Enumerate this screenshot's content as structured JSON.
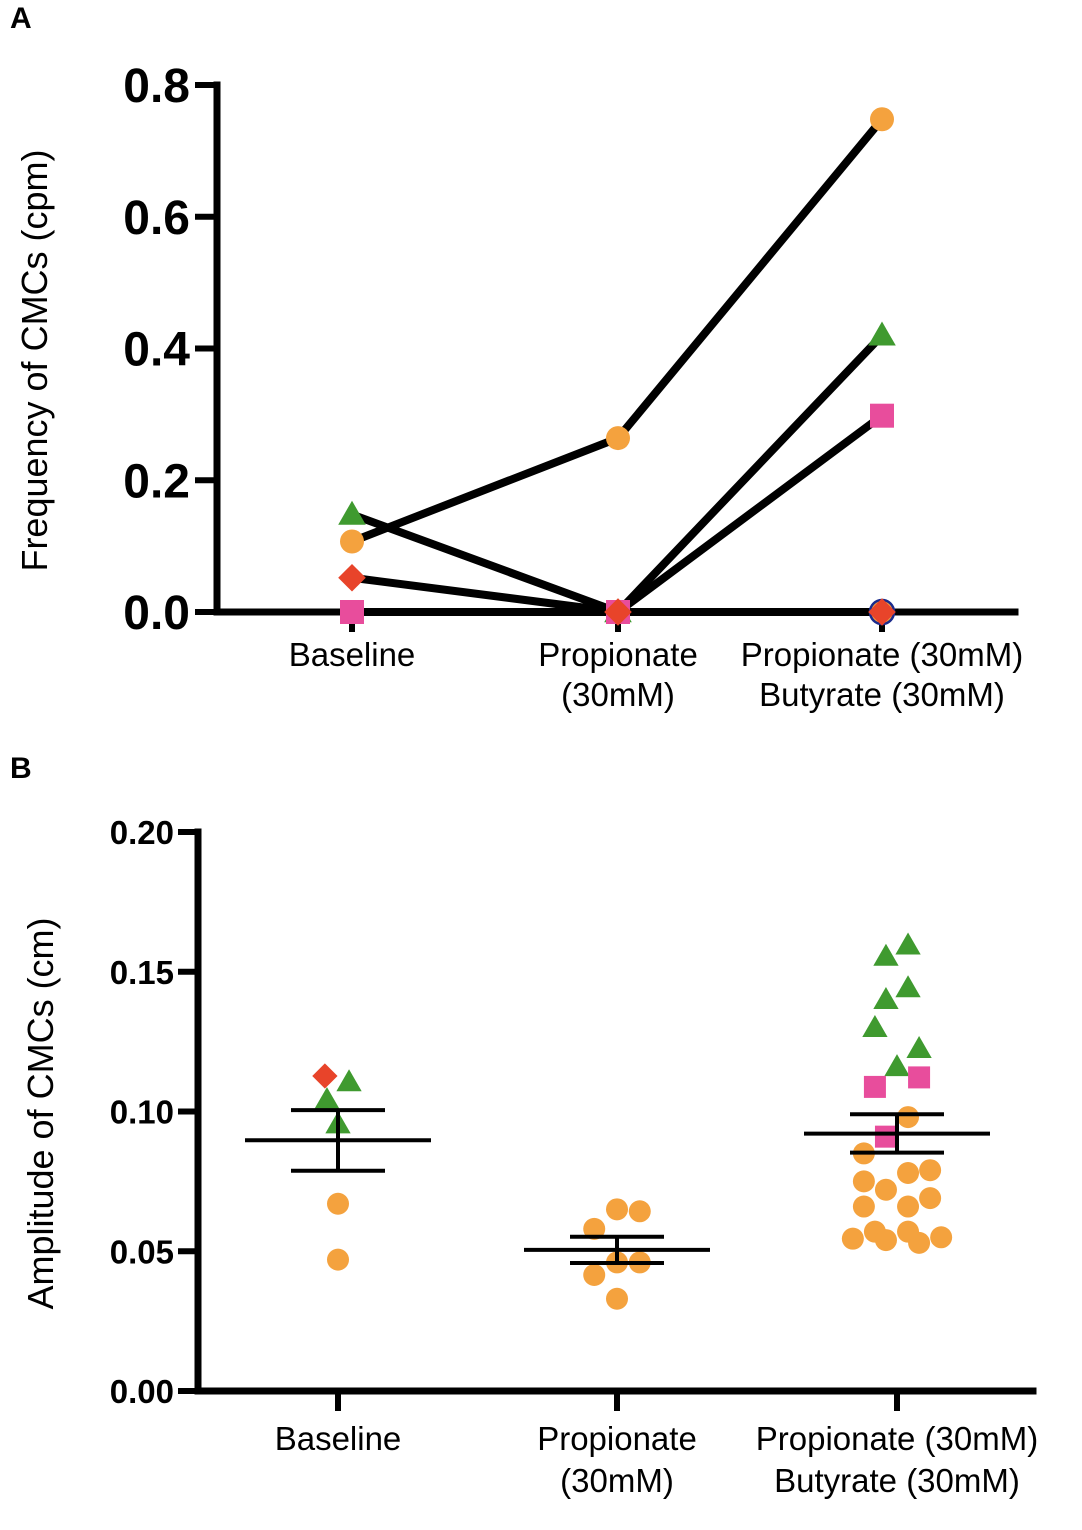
{
  "chart_data": [
    {
      "type": "line",
      "panel": "A",
      "title": "",
      "xlabel": "",
      "ylabel": "Frequency of CMCs (cpm)",
      "categories": [
        [
          "Baseline"
        ],
        [
          "Propionate",
          "(30mM)"
        ],
        [
          "Propionate (30mM)",
          "Butyrate (30mM)"
        ]
      ],
      "ylim": [
        0,
        0.8
      ],
      "yticks": [
        "0.0",
        "0.2",
        "0.4",
        "0.6",
        "0.8"
      ],
      "series": [
        {
          "name": "orange-circle",
          "marker": "circle",
          "color": "#f4a23e",
          "values": [
            0.107,
            0.264,
            0.748
          ]
        },
        {
          "name": "green-triangle",
          "marker": "triangle",
          "color": "#3f9a2f",
          "values": [
            0.148,
            0.0,
            0.42
          ]
        },
        {
          "name": "pink-square",
          "marker": "square",
          "color": "#e84d9c",
          "values": [
            0.0,
            0.0,
            0.298
          ]
        },
        {
          "name": "red-diamond",
          "marker": "diamond",
          "color": "#e8442a",
          "values": [
            0.052,
            0.0,
            0.0
          ]
        }
      ]
    },
    {
      "type": "scatter",
      "panel": "B",
      "title": "",
      "xlabel": "",
      "ylabel": "Amplitude of CMCs (cm)",
      "categories": [
        [
          "Baseline"
        ],
        [
          "Propionate",
          "(30mM)"
        ],
        [
          "Propionate (30mM)",
          "Butyrate (30mM)"
        ]
      ],
      "ylim": [
        0,
        0.2
      ],
      "yticks": [
        "0.00",
        "0.05",
        "0.10",
        "0.15",
        "0.20"
      ],
      "summary": [
        {
          "mean": 0.0897,
          "sem_low": 0.0788,
          "sem_high": 0.1005
        },
        {
          "mean": 0.0505,
          "sem_low": 0.0458,
          "sem_high": 0.0552
        },
        {
          "mean": 0.0921,
          "sem_low": 0.0853,
          "sem_high": 0.099
        }
      ],
      "groups": [
        [
          {
            "marker": "diamond",
            "color": "#e8442a",
            "offset": -0.19,
            "value": 0.1127
          },
          {
            "marker": "triangle",
            "color": "#3f9a2f",
            "offset": 0.16,
            "value": 0.1106
          },
          {
            "marker": "triangle",
            "color": "#3f9a2f",
            "offset": -0.16,
            "value": 0.1042
          },
          {
            "marker": "triangle",
            "color": "#3f9a2f",
            "offset": 0.0,
            "value": 0.0955
          },
          {
            "marker": "circle",
            "color": "#f4a23e",
            "offset": 0.0,
            "value": 0.067
          },
          {
            "marker": "circle",
            "color": "#f4a23e",
            "offset": 0.0,
            "value": 0.047
          }
        ],
        [
          {
            "marker": "circle",
            "color": "#f4a23e",
            "offset": 0.0,
            "value": 0.065
          },
          {
            "marker": "circle",
            "color": "#f4a23e",
            "offset": 0.33,
            "value": 0.0643
          },
          {
            "marker": "circle",
            "color": "#f4a23e",
            "offset": -0.33,
            "value": 0.058
          },
          {
            "marker": "circle",
            "color": "#f4a23e",
            "offset": 0.33,
            "value": 0.046
          },
          {
            "marker": "circle",
            "color": "#f4a23e",
            "offset": 0.0,
            "value": 0.046
          },
          {
            "marker": "circle",
            "color": "#f4a23e",
            "offset": -0.33,
            "value": 0.0415
          },
          {
            "marker": "circle",
            "color": "#f4a23e",
            "offset": 0.0,
            "value": 0.033
          }
        ],
        [
          {
            "marker": "triangle",
            "color": "#3f9a2f",
            "offset": 0.16,
            "value": 0.1595
          },
          {
            "marker": "triangle",
            "color": "#3f9a2f",
            "offset": -0.16,
            "value": 0.1555
          },
          {
            "marker": "triangle",
            "color": "#3f9a2f",
            "offset": 0.16,
            "value": 0.1442
          },
          {
            "marker": "triangle",
            "color": "#3f9a2f",
            "offset": -0.16,
            "value": 0.14
          },
          {
            "marker": "triangle",
            "color": "#3f9a2f",
            "offset": -0.32,
            "value": 0.13
          },
          {
            "marker": "triangle",
            "color": "#3f9a2f",
            "offset": 0.32,
            "value": 0.1225
          },
          {
            "marker": "triangle",
            "color": "#3f9a2f",
            "offset": 0.0,
            "value": 0.116
          },
          {
            "marker": "square",
            "color": "#e84d9c",
            "offset": 0.32,
            "value": 0.1122
          },
          {
            "marker": "square",
            "color": "#e84d9c",
            "offset": -0.32,
            "value": 0.1088
          },
          {
            "marker": "square",
            "color": "#e84d9c",
            "offset": -0.16,
            "value": 0.091
          },
          {
            "marker": "circle",
            "color": "#f4a23e",
            "offset": 0.16,
            "value": 0.098
          },
          {
            "marker": "circle",
            "color": "#f4a23e",
            "offset": -0.48,
            "value": 0.085
          },
          {
            "marker": "circle",
            "color": "#f4a23e",
            "offset": 0.48,
            "value": 0.079
          },
          {
            "marker": "circle",
            "color": "#f4a23e",
            "offset": 0.16,
            "value": 0.078
          },
          {
            "marker": "circle",
            "color": "#f4a23e",
            "offset": -0.48,
            "value": 0.075
          },
          {
            "marker": "circle",
            "color": "#f4a23e",
            "offset": -0.16,
            "value": 0.072
          },
          {
            "marker": "circle",
            "color": "#f4a23e",
            "offset": 0.48,
            "value": 0.069
          },
          {
            "marker": "circle",
            "color": "#f4a23e",
            "offset": -0.48,
            "value": 0.066
          },
          {
            "marker": "circle",
            "color": "#f4a23e",
            "offset": 0.16,
            "value": 0.066
          },
          {
            "marker": "circle",
            "color": "#f4a23e",
            "offset": -0.32,
            "value": 0.057
          },
          {
            "marker": "circle",
            "color": "#f4a23e",
            "offset": 0.16,
            "value": 0.057
          },
          {
            "marker": "circle",
            "color": "#f4a23e",
            "offset": -0.64,
            "value": 0.0545
          },
          {
            "marker": "circle",
            "color": "#f4a23e",
            "offset": 0.64,
            "value": 0.055
          },
          {
            "marker": "circle",
            "color": "#f4a23e",
            "offset": -0.16,
            "value": 0.054
          },
          {
            "marker": "circle",
            "color": "#f4a23e",
            "offset": 0.32,
            "value": 0.053
          }
        ]
      ]
    }
  ],
  "panels": {
    "a_label": "A",
    "b_label": "B"
  }
}
